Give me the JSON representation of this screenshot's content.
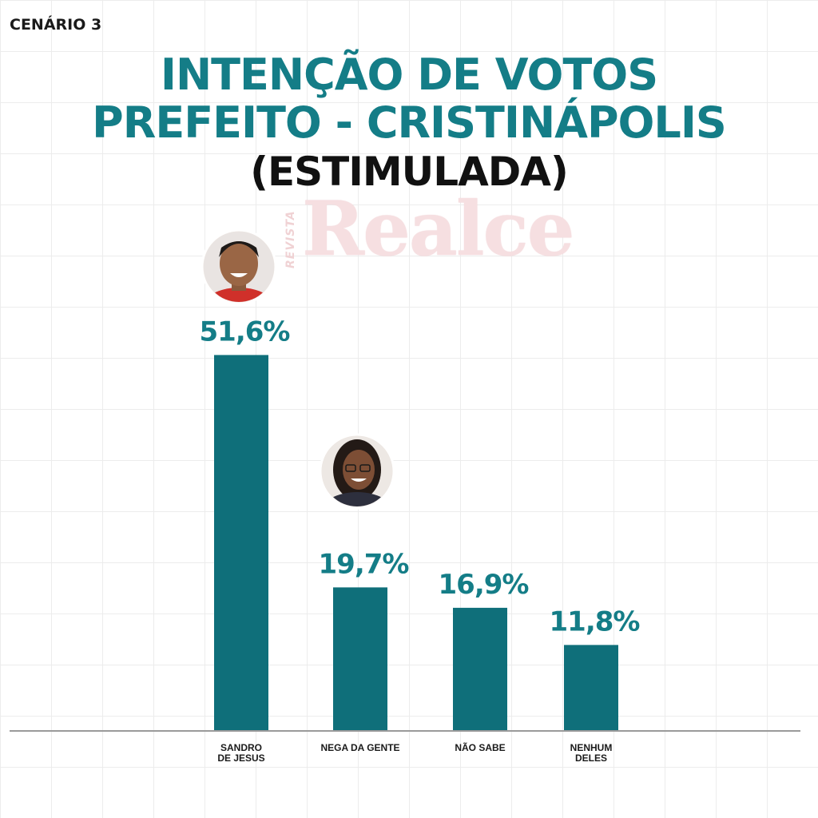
{
  "header": {
    "scenario": "CENÁRIO 3",
    "title_line1": "INTENÇÃO DE VOTOS",
    "title_line2": "PREFEITO - CRISTINÁPOLIS",
    "subtitle": "(ESTIMULADA)"
  },
  "watermark": {
    "small": "REVISTA",
    "big": "Realce"
  },
  "colors": {
    "bar": "#0f6f7a",
    "value_label": "#147d87",
    "title": "#147d87"
  },
  "chart_data": {
    "type": "bar",
    "title": "INTENÇÃO DE VOTOS PREFEITO - CRISTINÁPOLIS (ESTIMULADA)",
    "xlabel": "",
    "ylabel": "",
    "ylim": [
      0,
      60
    ],
    "grid": true,
    "categories": [
      [
        "SANDRO",
        "DE JESUS"
      ],
      [
        "NEGA DA GENTE"
      ],
      [
        "NÃO SABE"
      ],
      [
        "NENHUM",
        "DELES"
      ]
    ],
    "values": [
      51.6,
      19.7,
      16.9,
      11.8
    ],
    "value_labels": [
      "51,6%",
      "19,7%",
      "16,9%",
      "11,8%"
    ],
    "avatars": [
      "man-portrait",
      "woman-portrait",
      null,
      null
    ]
  }
}
